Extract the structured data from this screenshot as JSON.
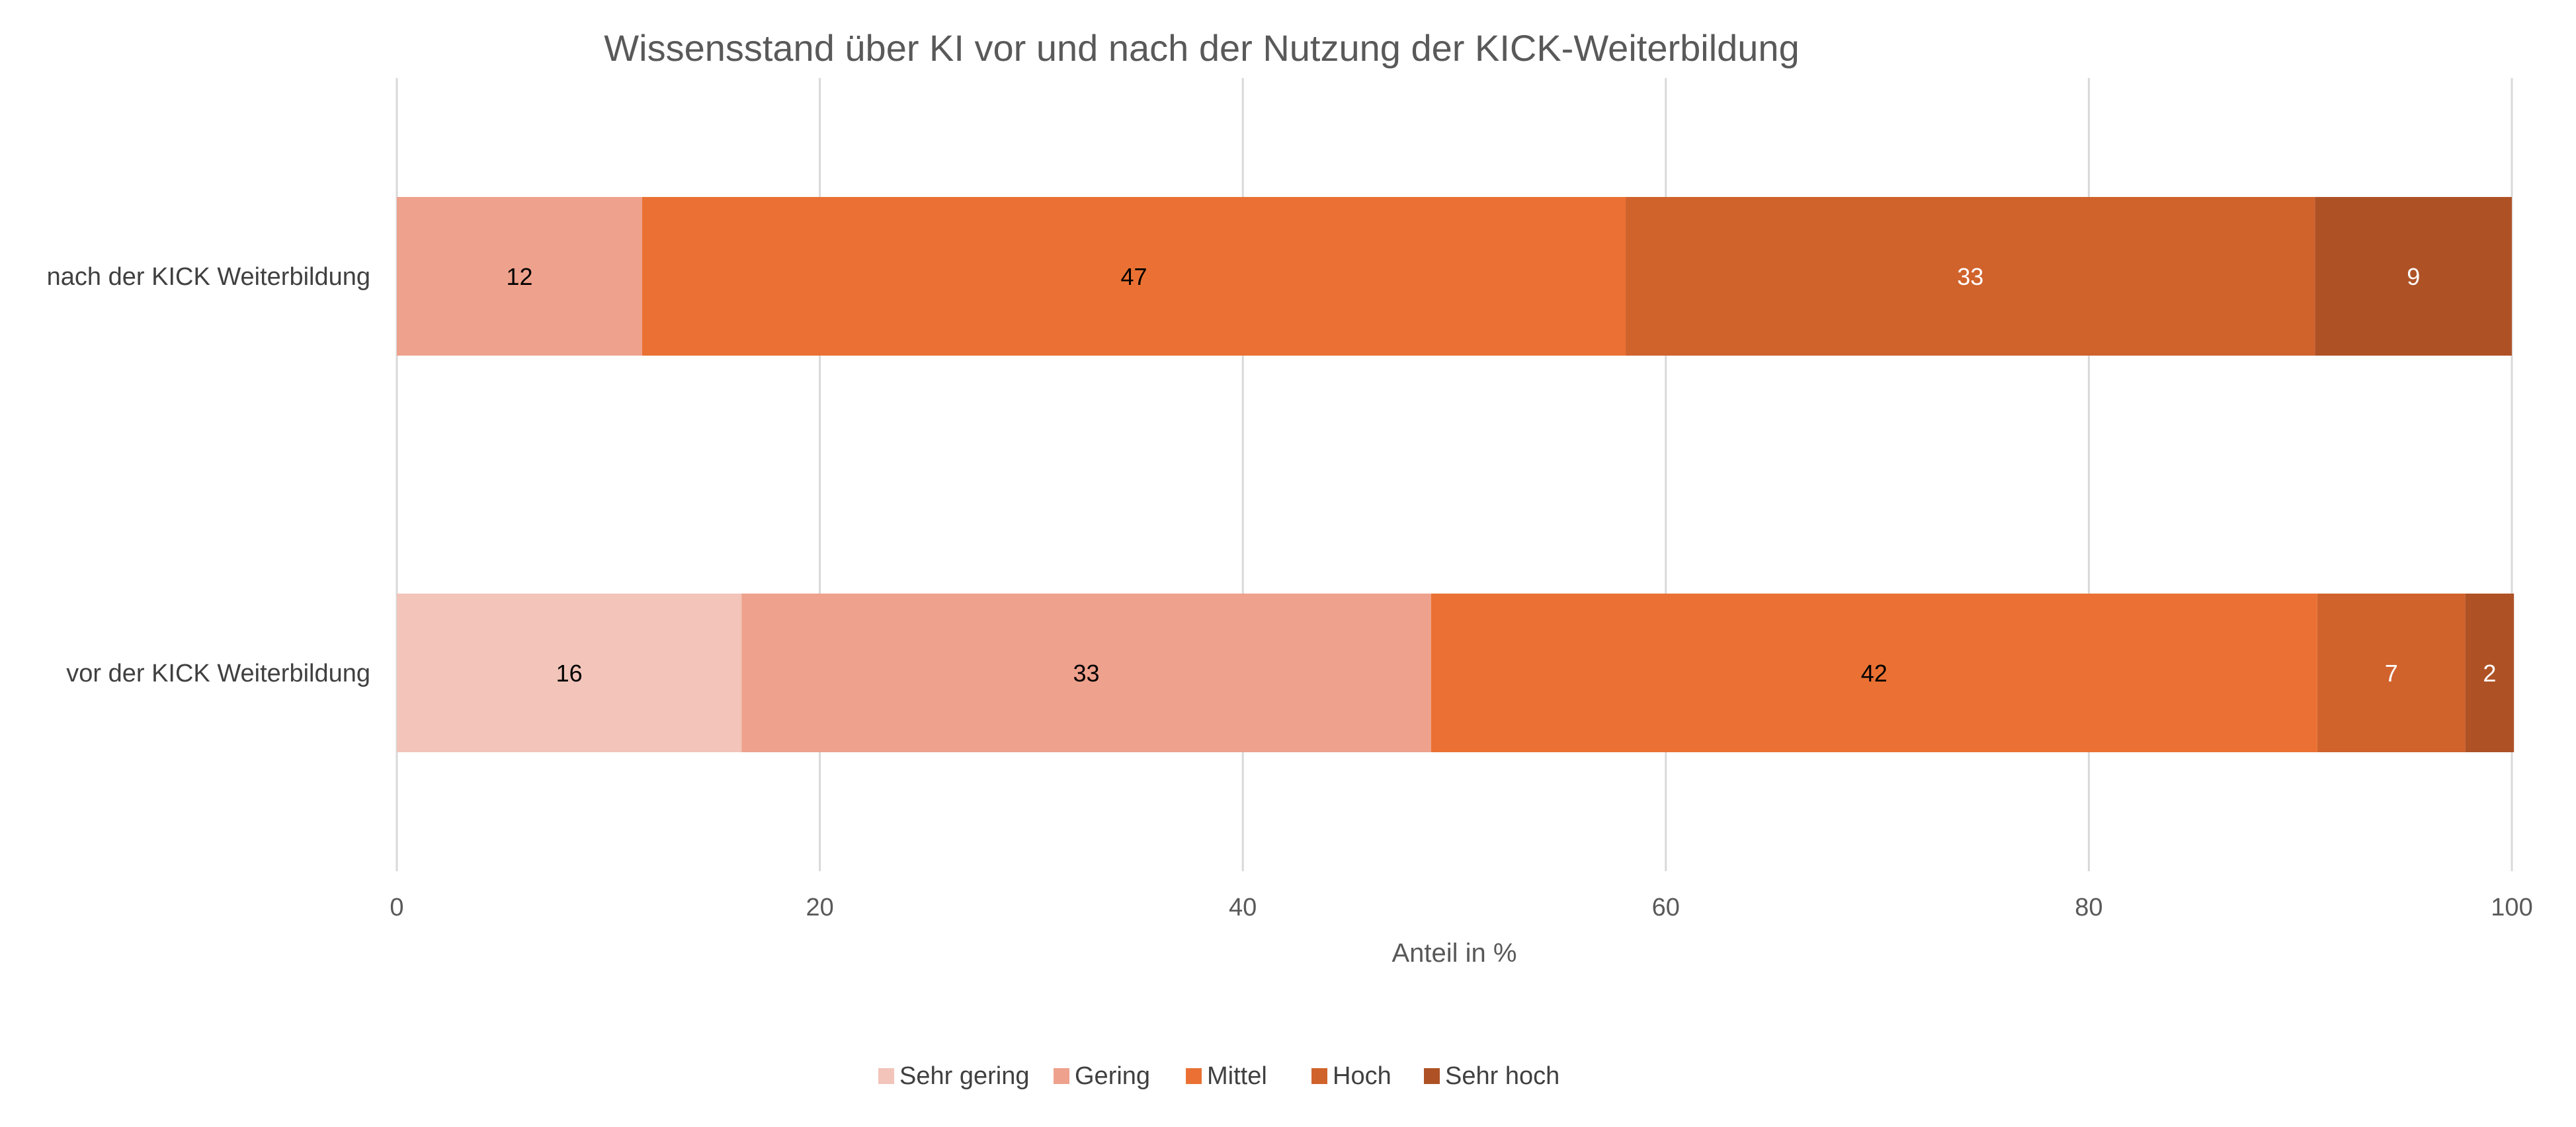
{
  "chart_data": {
    "type": "bar",
    "orientation": "horizontal",
    "stacked": true,
    "title": "Wissensstand über KI vor und nach der Nutzung der KICK-Weiterbildung",
    "xlabel": "Anteil in %",
    "ylabel": "",
    "xlim": [
      0,
      100
    ],
    "x_ticks": [
      0,
      20,
      40,
      60,
      80,
      100
    ],
    "grid": true,
    "legend_position": "bottom",
    "categories": [
      "nach der KICK Weiterbildung",
      "vor der KICK Weiterbildung"
    ],
    "series": [
      {
        "name": "Sehr gering",
        "color": "#F2C4BA",
        "label_color": "#000000",
        "values": [
          0,
          16.3
        ]
      },
      {
        "name": "Gering",
        "color": "#EEA18C",
        "label_color": "#000000",
        "values": [
          11.6,
          32.6
        ]
      },
      {
        "name": "Mittel",
        "color": "#EA7133",
        "label_color": "#000000",
        "values": [
          46.5,
          41.9
        ]
      },
      {
        "name": "Hoch",
        "color": "#D0622C",
        "label_color": "#ffffff",
        "values": [
          32.6,
          7.0
        ]
      },
      {
        "name": "Sehr hoch",
        "color": "#AE5226",
        "label_color": "#ffffff",
        "values": [
          9.3,
          2.3
        ]
      }
    ],
    "data_labels": [
      [
        "",
        "16"
      ],
      [
        "12",
        "33"
      ],
      [
        "47",
        "42"
      ],
      [
        "33",
        "7"
      ],
      [
        "9",
        "2"
      ]
    ]
  }
}
